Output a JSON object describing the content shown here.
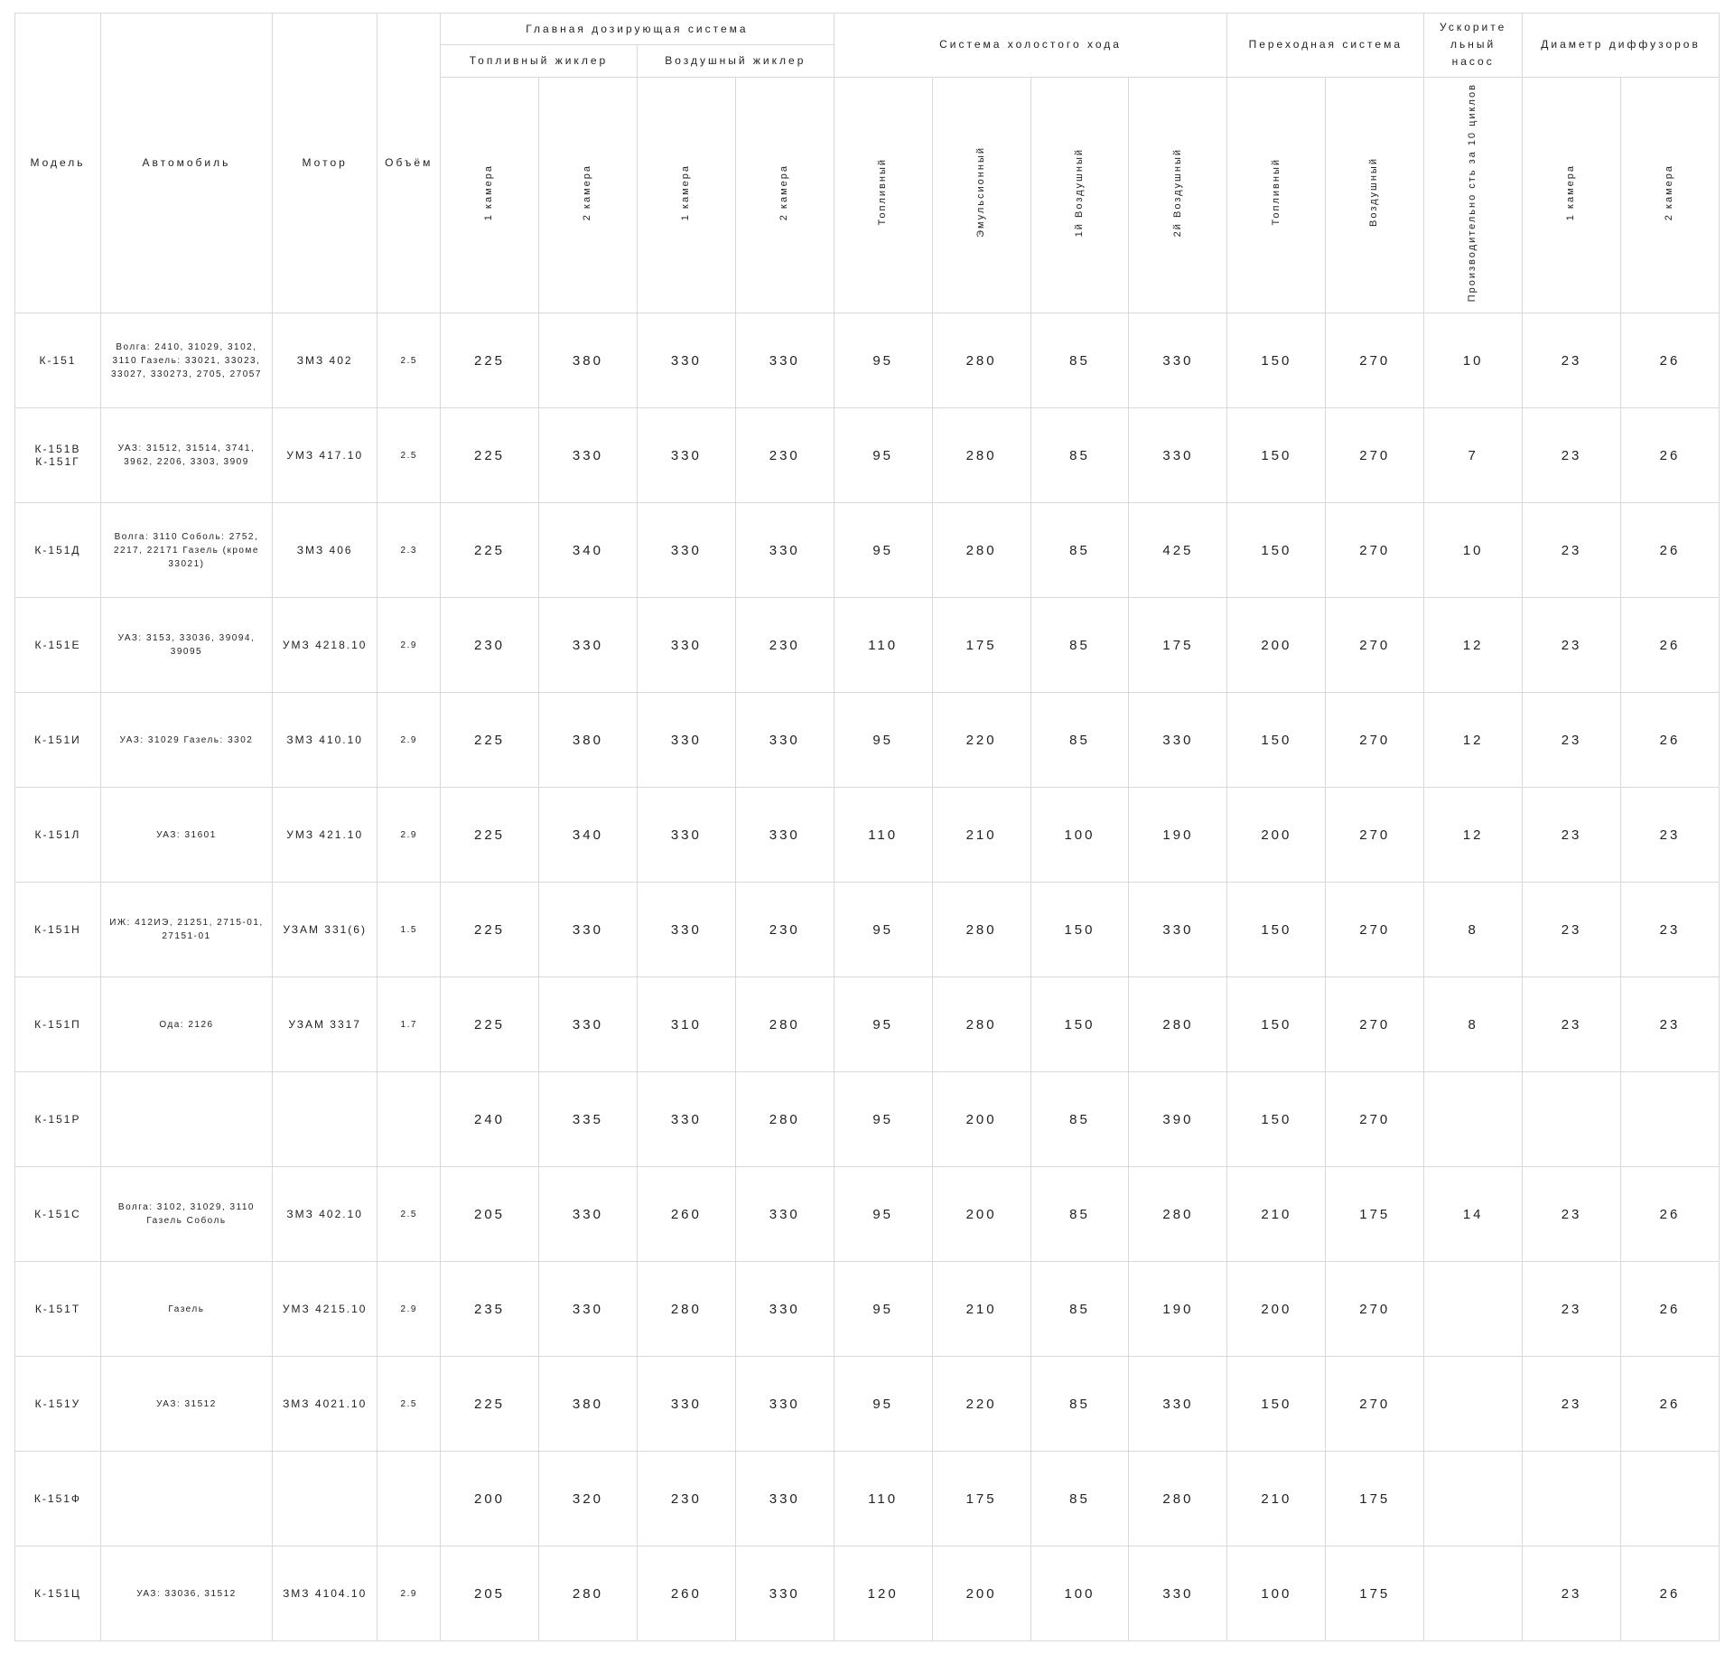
{
  "headers": {
    "model": "Модель",
    "auto": "Автомобиль",
    "motor": "Мотор",
    "vol": "Объём",
    "main": "Главная дозирующая система",
    "fuel_jet": "Топливный жиклер",
    "air_jet": "Воздушный жиклер",
    "idle": "Система холостого хода",
    "trans": "Переходная система",
    "accel": "Ускорите льный насос",
    "diff": "Диаметр диффузоров",
    "cam1": "1 камера",
    "cam2": "2 камера",
    "idle_fuel": "Топливный",
    "idle_emul": "Эмульсионный",
    "idle_air1": "1й Воздушный",
    "idle_air2": "2й Воздушный",
    "trans_fuel": "Топливный",
    "trans_air": "Воздушный",
    "accel_perf": "Производительно сть за 10 циклов"
  },
  "rows": [
    {
      "model": "К-151",
      "auto": "Волга: 2410, 31029, 3102, 3110 Газель: 33021, 33023, 33027, 330273, 2705, 27057",
      "motor": "ЗМЗ 402",
      "vol": "2.5",
      "v": [
        "225",
        "380",
        "330",
        "330",
        "95",
        "280",
        "85",
        "330",
        "150",
        "270",
        "10",
        "23",
        "26"
      ]
    },
    {
      "model": "К-151В К-151Г",
      "auto": "УАЗ: 31512, 31514, 3741, 3962, 2206, 3303, 3909",
      "motor": "УМЗ 417.10",
      "vol": "2.5",
      "v": [
        "225",
        "330",
        "330",
        "230",
        "95",
        "280",
        "85",
        "330",
        "150",
        "270",
        "7",
        "23",
        "26"
      ]
    },
    {
      "model": "К-151Д",
      "auto": "Волга: 3110 Соболь: 2752, 2217, 22171 Газель (кроме 33021)",
      "motor": "ЗМЗ 406",
      "vol": "2.3",
      "v": [
        "225",
        "340",
        "330",
        "330",
        "95",
        "280",
        "85",
        "425",
        "150",
        "270",
        "10",
        "23",
        "26"
      ]
    },
    {
      "model": "К-151Е",
      "auto": "УАЗ: 3153, 33036, 39094, 39095",
      "motor": "УМЗ 4218.10",
      "vol": "2.9",
      "v": [
        "230",
        "330",
        "330",
        "230",
        "110",
        "175",
        "85",
        "175",
        "200",
        "270",
        "12",
        "23",
        "26"
      ]
    },
    {
      "model": "К-151И",
      "auto": "УАЗ: 31029 Газель: 3302",
      "motor": "ЗМЗ 410.10",
      "vol": "2.9",
      "v": [
        "225",
        "380",
        "330",
        "330",
        "95",
        "220",
        "85",
        "330",
        "150",
        "270",
        "12",
        "23",
        "26"
      ]
    },
    {
      "model": "К-151Л",
      "auto": "УАЗ: 31601",
      "motor": "УМЗ 421.10",
      "vol": "2.9",
      "v": [
        "225",
        "340",
        "330",
        "330",
        "110",
        "210",
        "100",
        "190",
        "200",
        "270",
        "12",
        "23",
        "23"
      ]
    },
    {
      "model": "К-151Н",
      "auto": "ИЖ: 412ИЭ, 21251, 2715-01, 27151-01",
      "motor": "УЗАМ 331(6)",
      "vol": "1.5",
      "v": [
        "225",
        "330",
        "330",
        "230",
        "95",
        "280",
        "150",
        "330",
        "150",
        "270",
        "8",
        "23",
        "23"
      ]
    },
    {
      "model": "К-151П",
      "auto": "Ода: 2126",
      "motor": "УЗАМ 3317",
      "vol": "1.7",
      "v": [
        "225",
        "330",
        "310",
        "280",
        "95",
        "280",
        "150",
        "280",
        "150",
        "270",
        "8",
        "23",
        "23"
      ]
    },
    {
      "model": "К-151Р",
      "auto": "",
      "motor": "",
      "vol": "",
      "v": [
        "240",
        "335",
        "330",
        "280",
        "95",
        "200",
        "85",
        "390",
        "150",
        "270",
        "",
        "",
        ""
      ]
    },
    {
      "model": "К-151С",
      "auto": "Волга: 3102, 31029, 3110 Газель Соболь",
      "motor": "ЗМЗ 402.10",
      "vol": "2.5",
      "v": [
        "205",
        "330",
        "260",
        "330",
        "95",
        "200",
        "85",
        "280",
        "210",
        "175",
        "14",
        "23",
        "26"
      ]
    },
    {
      "model": "К-151Т",
      "auto": "Газель",
      "motor": "УМЗ 4215.10",
      "vol": "2.9",
      "v": [
        "235",
        "330",
        "280",
        "330",
        "95",
        "210",
        "85",
        "190",
        "200",
        "270",
        "",
        "23",
        "26"
      ]
    },
    {
      "model": "К-151У",
      "auto": "УАЗ: 31512",
      "motor": "ЗМЗ 4021.10",
      "vol": "2.5",
      "v": [
        "225",
        "380",
        "330",
        "330",
        "95",
        "220",
        "85",
        "330",
        "150",
        "270",
        "",
        "23",
        "26"
      ]
    },
    {
      "model": "К-151Ф",
      "auto": "",
      "motor": "",
      "vol": "",
      "v": [
        "200",
        "320",
        "230",
        "330",
        "110",
        "175",
        "85",
        "280",
        "210",
        "175",
        "",
        "",
        ""
      ]
    },
    {
      "model": "К-151Ц",
      "auto": "УАЗ: 33036, 31512",
      "motor": "ЗМЗ 4104.10",
      "vol": "2.9",
      "v": [
        "205",
        "280",
        "260",
        "330",
        "120",
        "200",
        "100",
        "330",
        "100",
        "175",
        "",
        "23",
        "26"
      ]
    }
  ]
}
